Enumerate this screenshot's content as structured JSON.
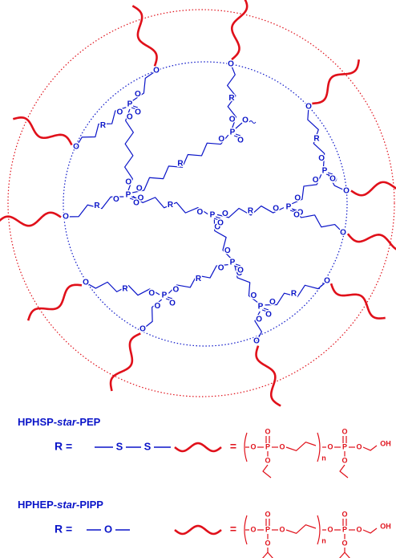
{
  "atom_labels": [
    "O",
    "P",
    "R",
    "S",
    "OH",
    "n"
  ],
  "equals": "=",
  "r_label": "R =",
  "examples": [
    {
      "name_parts": [
        "HPHSP-",
        "star",
        "-PEP"
      ]
    },
    {
      "name_parts": [
        "HPHEP-",
        "star",
        "-PIPP"
      ]
    }
  ]
}
